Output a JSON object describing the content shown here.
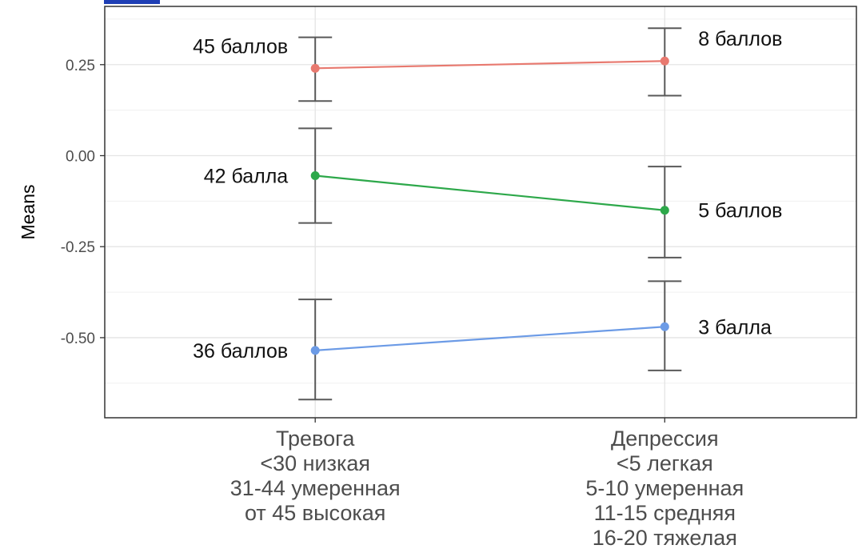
{
  "chart_data": {
    "type": "line",
    "ylabel": "Means",
    "xlabel": "",
    "ylim": [
      -0.72,
      0.41
    ],
    "yticks": [
      0.25,
      0.0,
      -0.25,
      -0.5
    ],
    "ytick_labels": [
      "0.25",
      "0.00",
      "-0.25",
      "-0.50"
    ],
    "grid": true,
    "categories": [
      [
        "Тревога",
        "<30 низкая",
        "31-44 умеренная",
        "от 45 высокая"
      ],
      [
        "Депрессия",
        "<5 легкая",
        "5-10 умеренная",
        "11-15 средняя",
        "16-20 тяжелая"
      ]
    ],
    "series": [
      {
        "color": "#E8796F",
        "values": [
          0.24,
          0.26
        ],
        "err_low": [
          0.15,
          0.165
        ],
        "err_high": [
          0.325,
          0.35
        ],
        "labels": [
          "45 баллов",
          "8 баллов"
        ]
      },
      {
        "color": "#2DA84A",
        "values": [
          -0.055,
          -0.15
        ],
        "err_low": [
          -0.185,
          -0.28
        ],
        "err_high": [
          0.075,
          -0.03
        ],
        "labels": [
          "42 балла",
          "5 баллов"
        ]
      },
      {
        "color": "#6C9BE6",
        "values": [
          -0.535,
          -0.47
        ],
        "err_low": [
          -0.67,
          -0.59
        ],
        "err_high": [
          -0.395,
          -0.345
        ],
        "labels": [
          "36 баллов",
          "3 балла"
        ]
      }
    ]
  }
}
